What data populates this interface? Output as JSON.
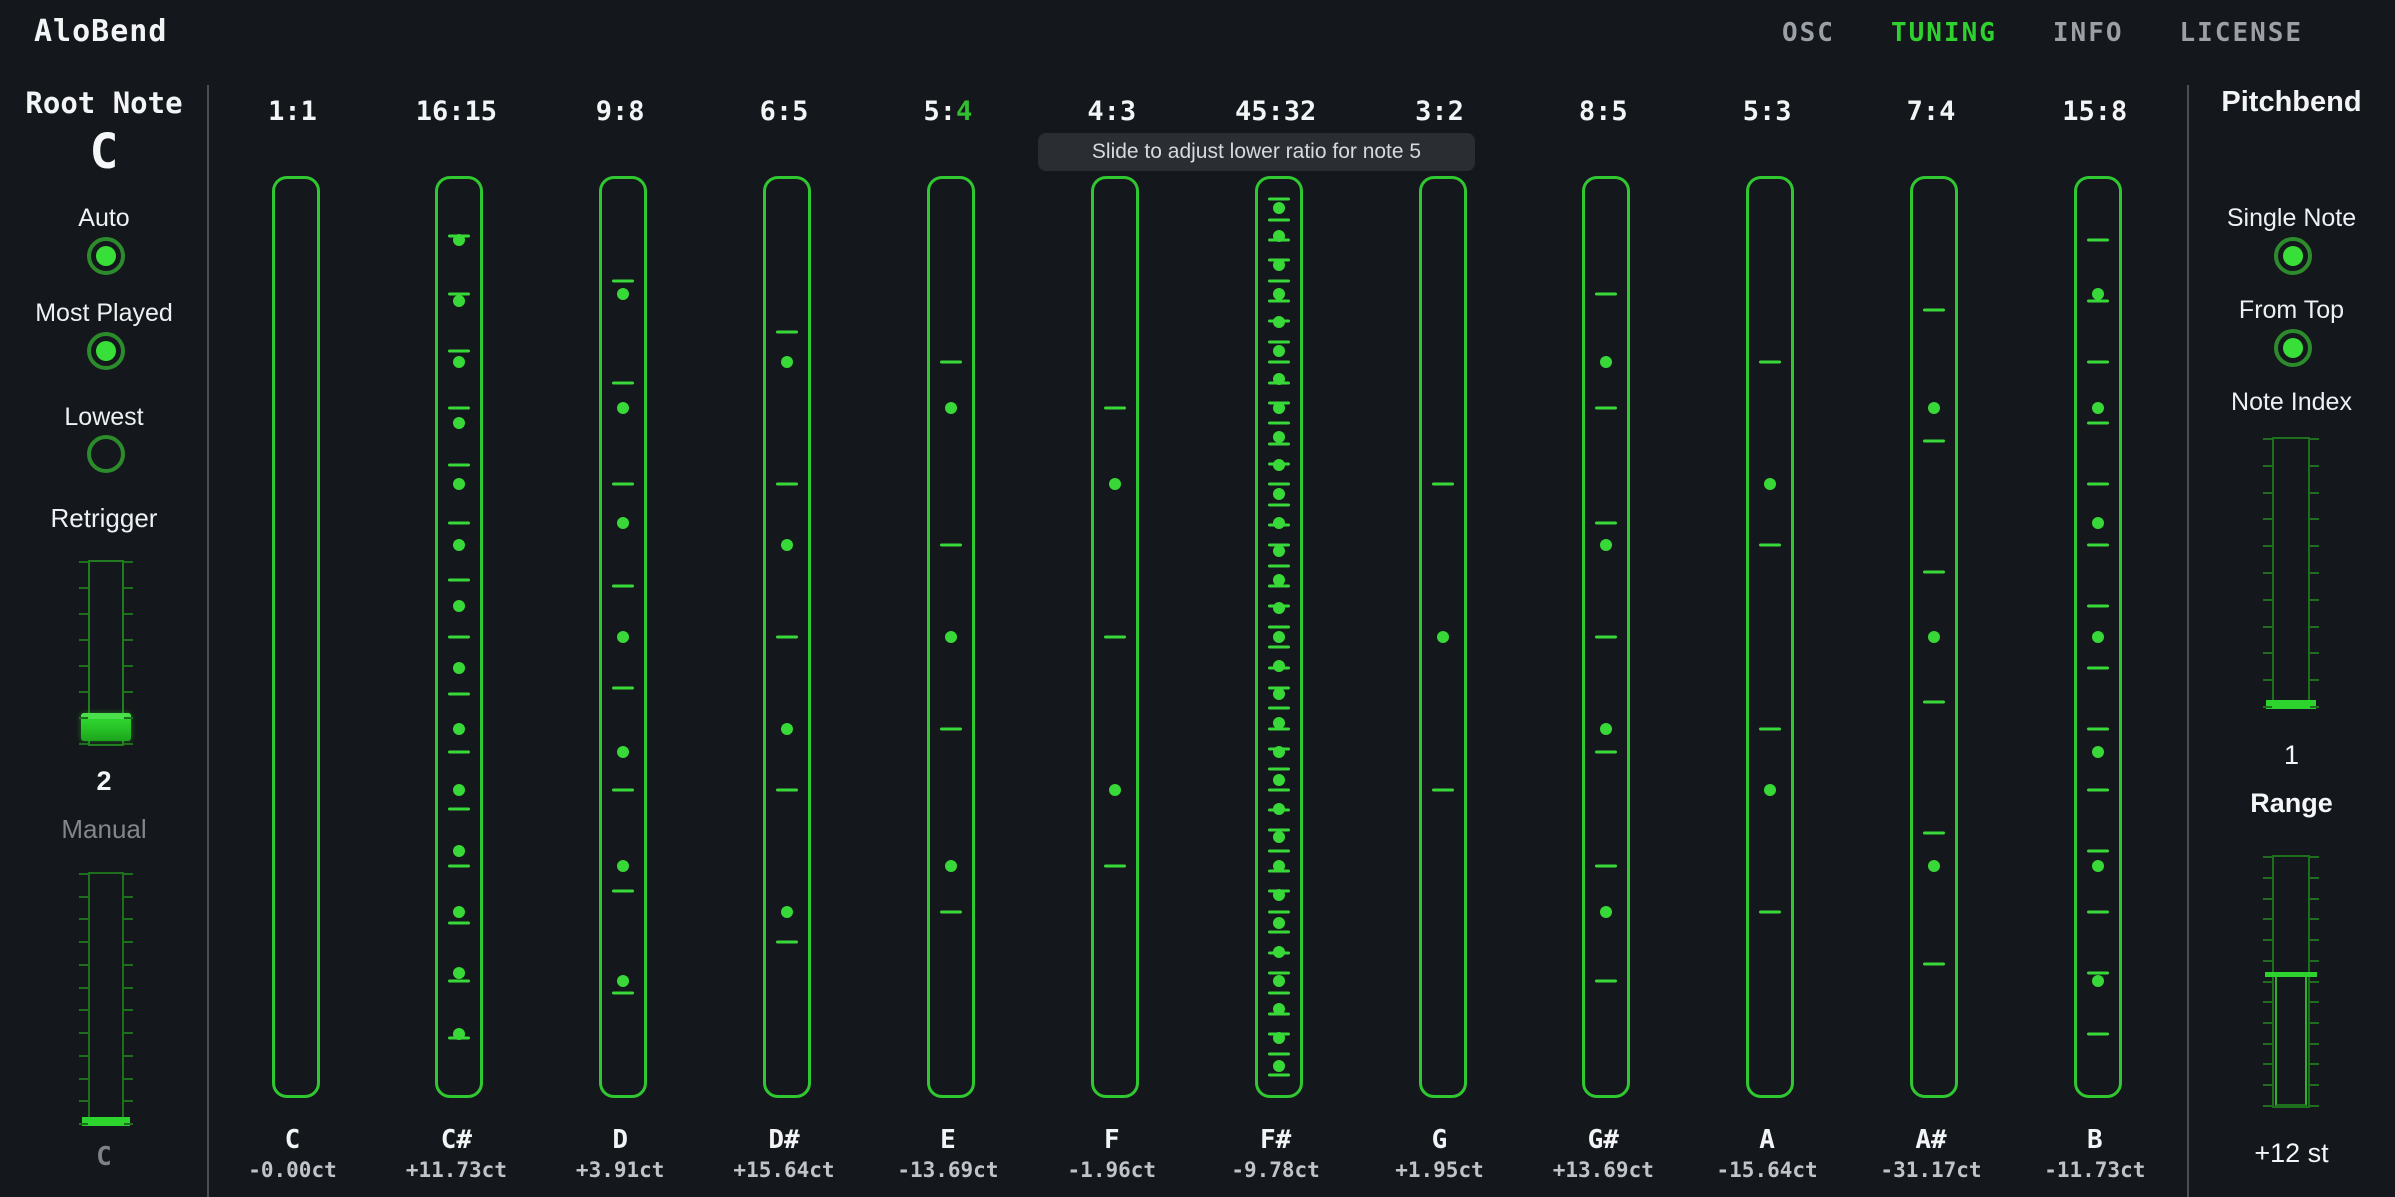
{
  "app": {
    "title": "AloBend"
  },
  "nav": {
    "items": [
      {
        "label": "OSC",
        "active": false
      },
      {
        "label": "TUNING",
        "active": true
      },
      {
        "label": "INFO",
        "active": false
      },
      {
        "label": "LICENSE",
        "active": false
      }
    ]
  },
  "root_note": {
    "heading": "Root Note",
    "value": "C",
    "modes": [
      {
        "label": "Auto",
        "on": true
      },
      {
        "label": "Most Played",
        "on": true
      },
      {
        "label": "Lowest",
        "on": false
      }
    ],
    "retrigger": {
      "label": "Retrigger",
      "value": "2",
      "ticks": 8,
      "handle_pct": 83
    },
    "manual": {
      "label": "Manual",
      "value": "C",
      "ticks": 12
    }
  },
  "tuning": {
    "tooltip": "Slide to adjust lower ratio for note 5",
    "notes": [
      {
        "note": "C",
        "num": 1,
        "den": 1,
        "cents": "-0.00ct",
        "hovered": false
      },
      {
        "note": "C#",
        "num": 16,
        "den": 15,
        "cents": "+11.73ct",
        "hovered": false
      },
      {
        "note": "D",
        "num": 9,
        "den": 8,
        "cents": "+3.91ct",
        "hovered": false
      },
      {
        "note": "D#",
        "num": 6,
        "den": 5,
        "cents": "+15.64ct",
        "hovered": false
      },
      {
        "note": "E",
        "num": 5,
        "den": 4,
        "cents": "-13.69ct",
        "hovered": true
      },
      {
        "note": "F",
        "num": 4,
        "den": 3,
        "cents": "-1.96ct",
        "hovered": false
      },
      {
        "note": "F#",
        "num": 45,
        "den": 32,
        "cents": "-9.78ct",
        "hovered": false
      },
      {
        "note": "G",
        "num": 3,
        "den": 2,
        "cents": "+1.95ct",
        "hovered": false
      },
      {
        "note": "G#",
        "num": 8,
        "den": 5,
        "cents": "+13.69ct",
        "hovered": false
      },
      {
        "note": "A",
        "num": 5,
        "den": 3,
        "cents": "-15.64ct",
        "hovered": false
      },
      {
        "note": "A#",
        "num": 7,
        "den": 4,
        "cents": "-31.17ct",
        "hovered": false
      },
      {
        "note": "B",
        "num": 15,
        "den": 8,
        "cents": "-11.73ct",
        "hovered": false
      }
    ]
  },
  "pitchbend": {
    "heading": "Pitchbend",
    "modes": [
      {
        "label": "Single Note",
        "on": true
      },
      {
        "label": "From Top",
        "on": true
      }
    ],
    "note_index": {
      "label": "Note Index",
      "value": "1",
      "ticks": 11
    },
    "range": {
      "label": "Range",
      "value": "+12 st",
      "ticks": 13,
      "handle_pct": 47
    }
  },
  "colors": {
    "background": "#14171b",
    "accent_green": "#2ed12e",
    "mark_green": "#38d838",
    "dim_outline_green": "#1e6e1e",
    "tooltip_bg": "#2a2e33",
    "muted_text": "#9aa0a6"
  }
}
